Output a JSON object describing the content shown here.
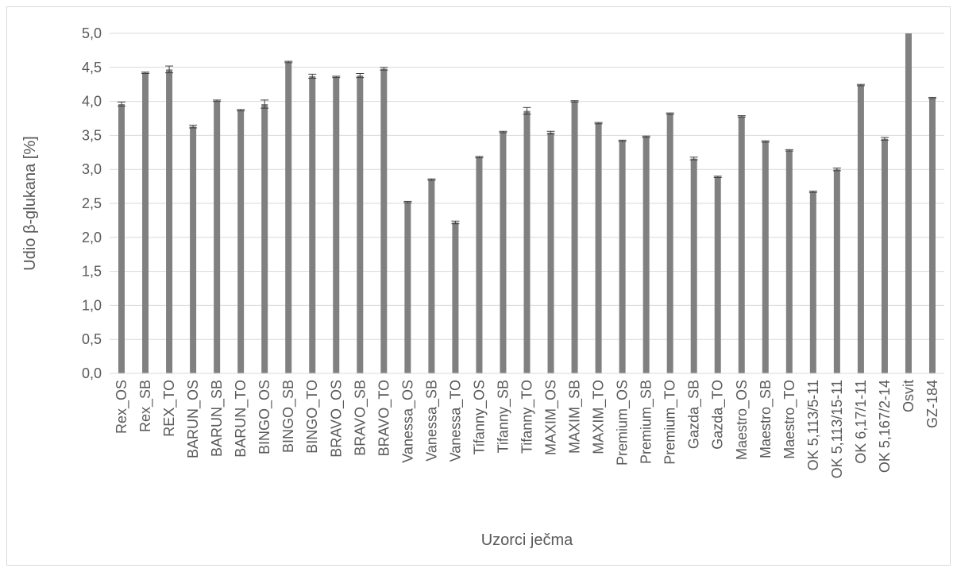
{
  "chart_data": {
    "type": "bar",
    "title": "",
    "xlabel": "Uzorci ječma",
    "ylabel": "Udio β-glukana [%]",
    "ylim": [
      0,
      5
    ],
    "y_ticks": [
      "0,0",
      "0,5",
      "1,0",
      "1,5",
      "2,0",
      "2,5",
      "3,0",
      "3,5",
      "4,0",
      "4,5",
      "5,0"
    ],
    "grid": "horizontal",
    "legend": "none",
    "error_bars": true,
    "bar_color": "#808080",
    "categories": [
      "Rex_OS",
      "Rex_SB",
      "REX_TO",
      "BARUN_OS",
      "BARUN_SB",
      "BARUN_TO",
      "BINGO_OS",
      "BINGO_SB",
      "BINGO_TO",
      "BRAVO_OS",
      "BRAVO_SB",
      "BRAVO_TO",
      "Vanessa_OS",
      "Vanessa_SB",
      "Vanessa_TO",
      "Tifanny_OS",
      "Tifanny_SB",
      "Tifanny_TO",
      "MAXIM_OS",
      "MAXIM_SB",
      "MAXIM_TO",
      "Premium_OS",
      "Premium_SB",
      "Premium_TO",
      "Gazda_SB",
      "Gazda_TO",
      "Maestro_OS",
      "Maestro_SB",
      "Maestro_TO",
      "OK 5,113/5-11",
      "OK 5,113/15-11",
      "OK 6,17/1-11",
      "OK 5,167/2-14",
      "Osvit",
      "GZ-184"
    ],
    "values": [
      3.96,
      4.42,
      4.47,
      3.63,
      4.01,
      3.87,
      3.96,
      4.58,
      4.37,
      4.36,
      4.38,
      4.48,
      2.52,
      2.85,
      2.22,
      3.18,
      3.55,
      3.86,
      3.54,
      4.0,
      3.68,
      3.42,
      3.48,
      3.82,
      3.16,
      2.89,
      3.78,
      3.41,
      3.28,
      2.67,
      3.0,
      4.24,
      3.45,
      5.0,
      4.05
    ],
    "errors": [
      0.03,
      0.01,
      0.05,
      0.02,
      0.01,
      0.01,
      0.06,
      0.01,
      0.03,
      0.01,
      0.03,
      0.02,
      0.01,
      0.01,
      0.02,
      0.01,
      0.01,
      0.05,
      0.02,
      0.01,
      0.01,
      0.01,
      0.01,
      0.01,
      0.02,
      0.01,
      0.01,
      0.01,
      0.01,
      0.01,
      0.02,
      0.01,
      0.02,
      0.0,
      0.01
    ]
  }
}
